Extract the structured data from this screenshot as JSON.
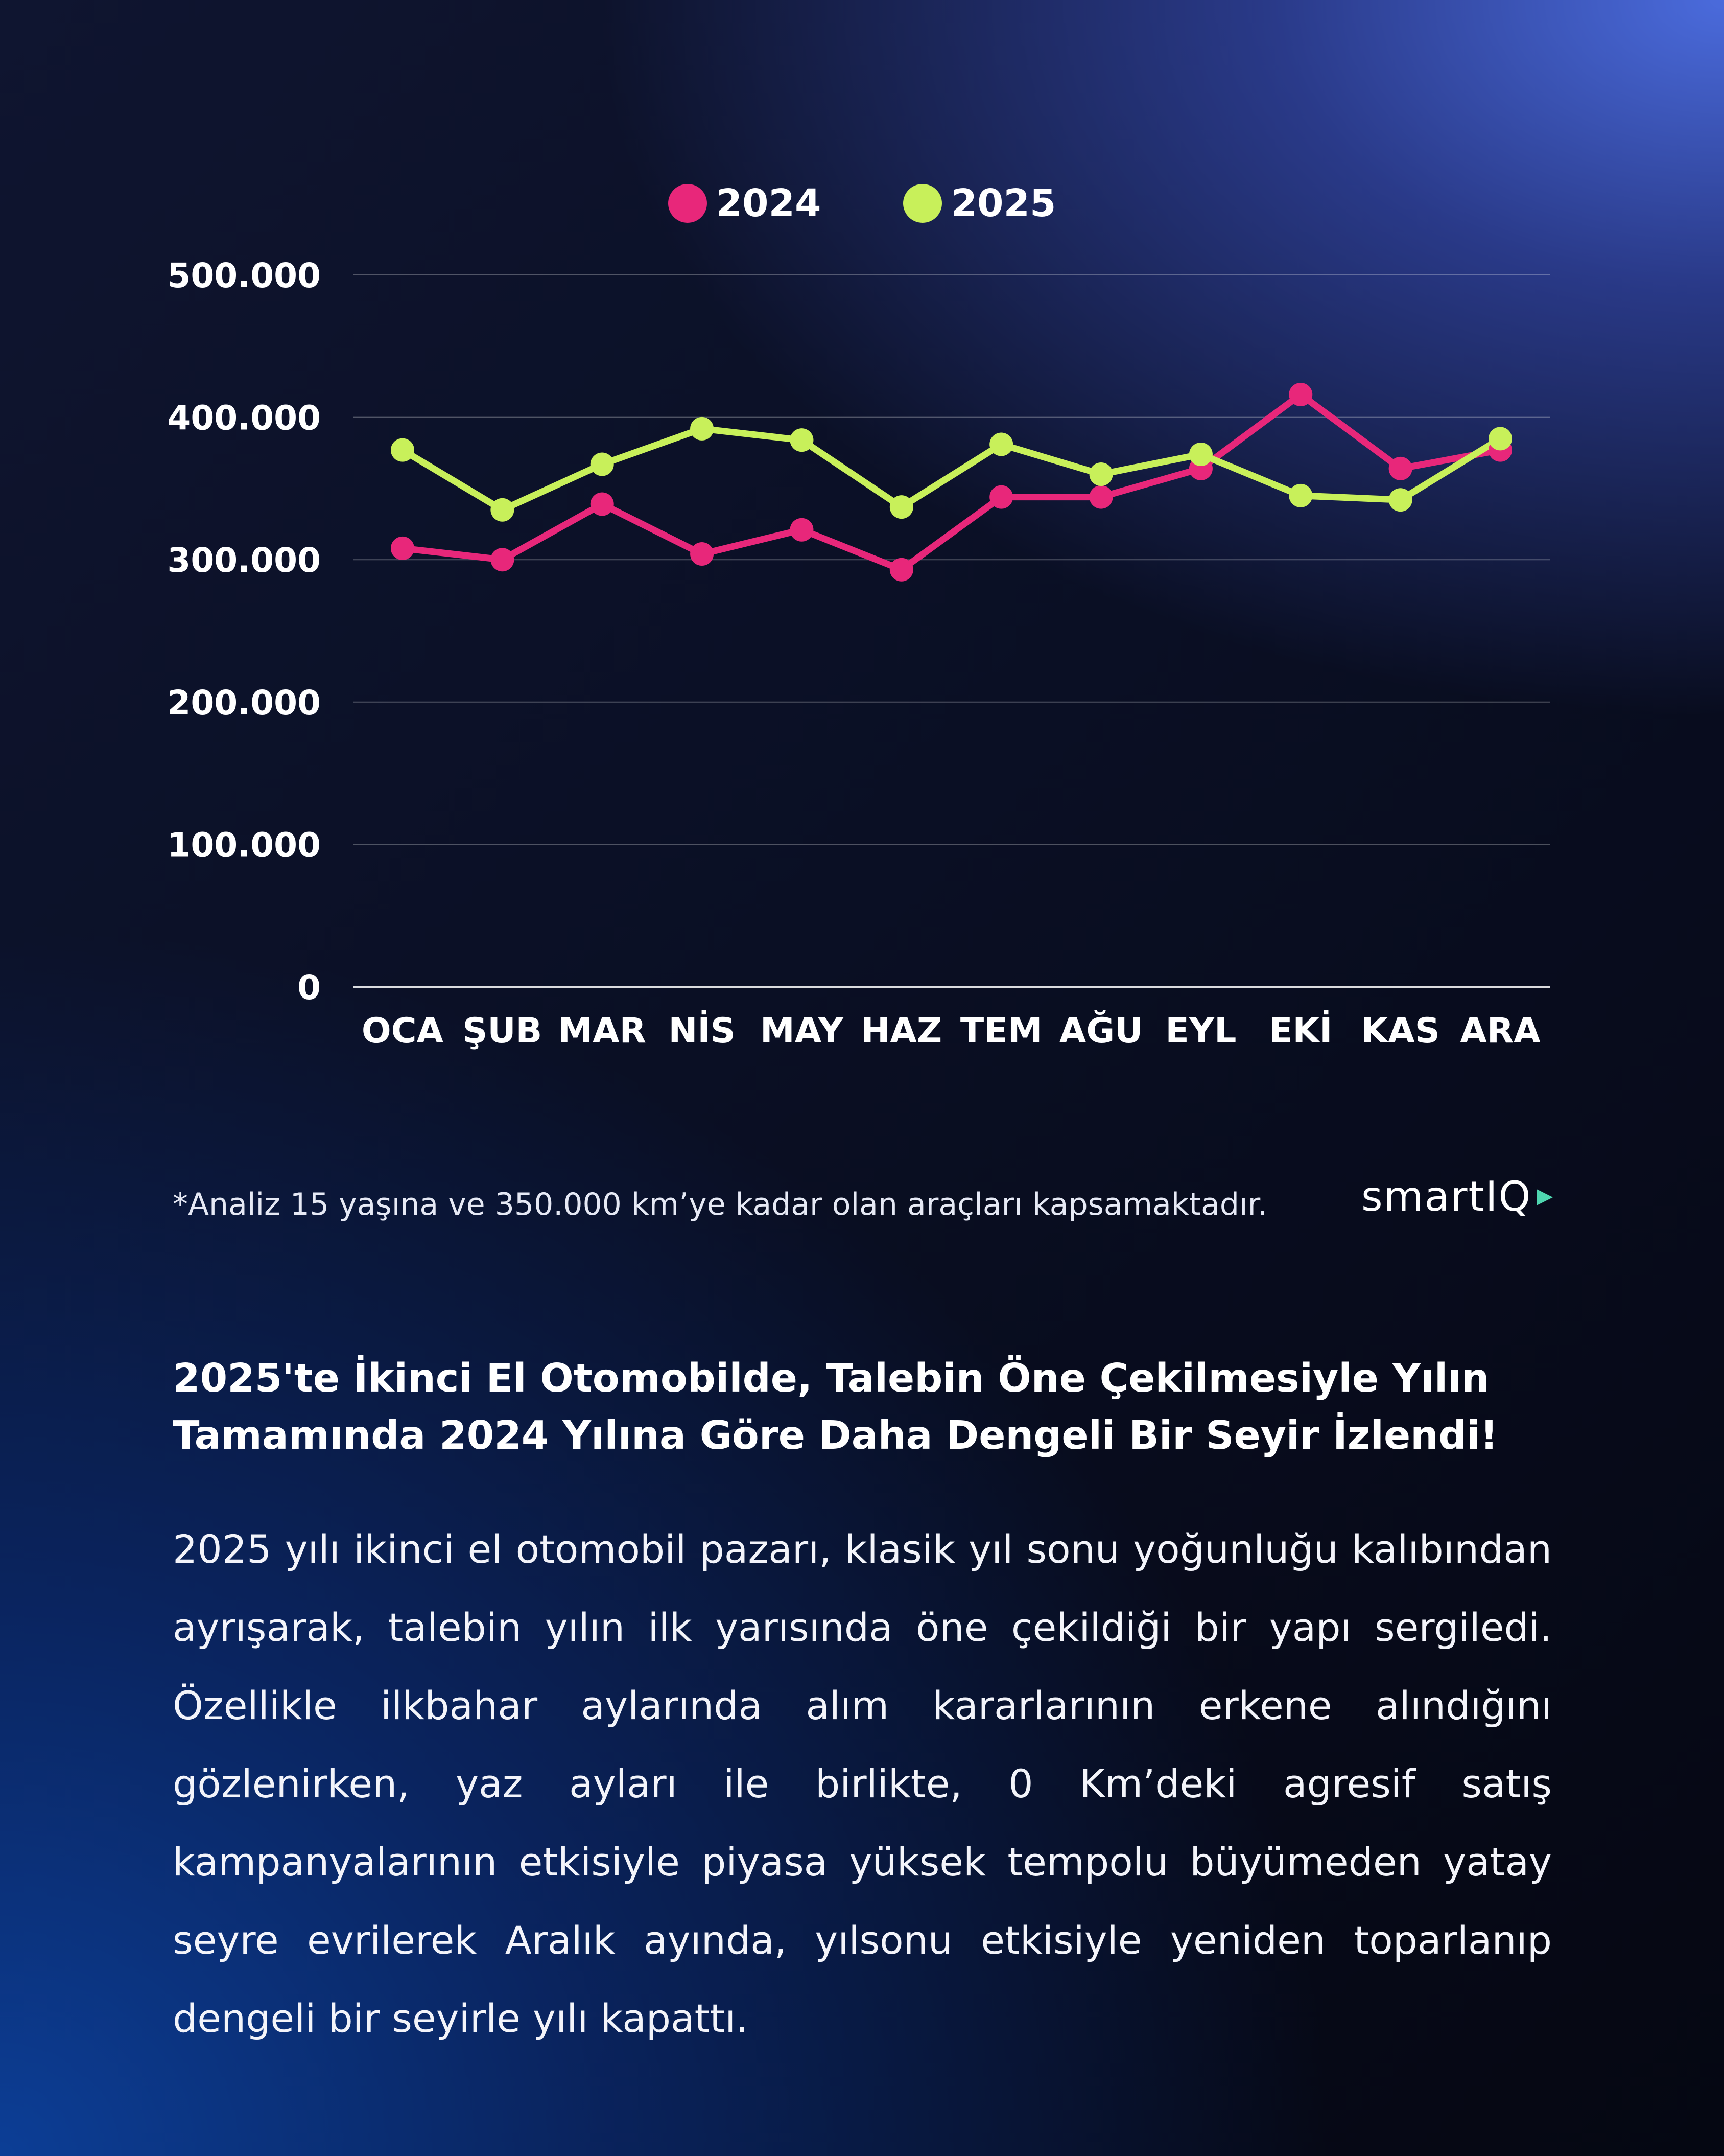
{
  "chart_data": {
    "type": "line",
    "categories": [
      "OCA",
      "ŞUB",
      "MAR",
      "NİS",
      "MAY",
      "HAZ",
      "TEM",
      "AĞU",
      "EYL",
      "EKİ",
      "KAS",
      "ARA"
    ],
    "series": [
      {
        "name": "2024",
        "color": "#e8277a",
        "values": [
          308000,
          300000,
          339000,
          304000,
          321000,
          293000,
          344000,
          344000,
          364000,
          416000,
          364000,
          377000
        ]
      },
      {
        "name": "2025",
        "color": "#c8f05a",
        "values": [
          377000,
          335000,
          367000,
          392000,
          384000,
          337000,
          381000,
          360000,
          374000,
          345000,
          342000,
          385000
        ]
      }
    ],
    "yticks": [
      "0",
      "100.000",
      "200.000",
      "300.000",
      "400.000",
      "500.000"
    ],
    "ylim": [
      0,
      500000
    ],
    "grid": true,
    "legend_position": "top-center"
  },
  "footnote": "*Analiz 15 yaşına ve 350.000 km’ye kadar olan araçları kapsamaktadır.",
  "logo": {
    "text": "smartIQ"
  },
  "headline": "2025'te İkinci El Otomobilde, Talebin Öne Çekilmesiyle Yılın Tamamında 2024 Yılına Göre Daha Dengeli Bir Seyir İzlendi!",
  "body": "2025 yılı ikinci el otomobil pazarı, klasik yıl sonu yoğunluğu kalıbından ayrışarak, talebin yılın ilk yarısında öne çekildiği bir yapı sergiledi. Özellikle ilkbahar aylarında alım kararlarının erkene alındığını gözlenirken, yaz ayları ile birlikte, 0 Km’deki agresif satış kampanyalarının etkisiyle piyasa yüksek tempolu büyümeden yatay seyre evrilerek Aralık ayında, yılsonu etkisiyle yeniden toparlanıp dengeli bir seyirle yılı kapattı."
}
